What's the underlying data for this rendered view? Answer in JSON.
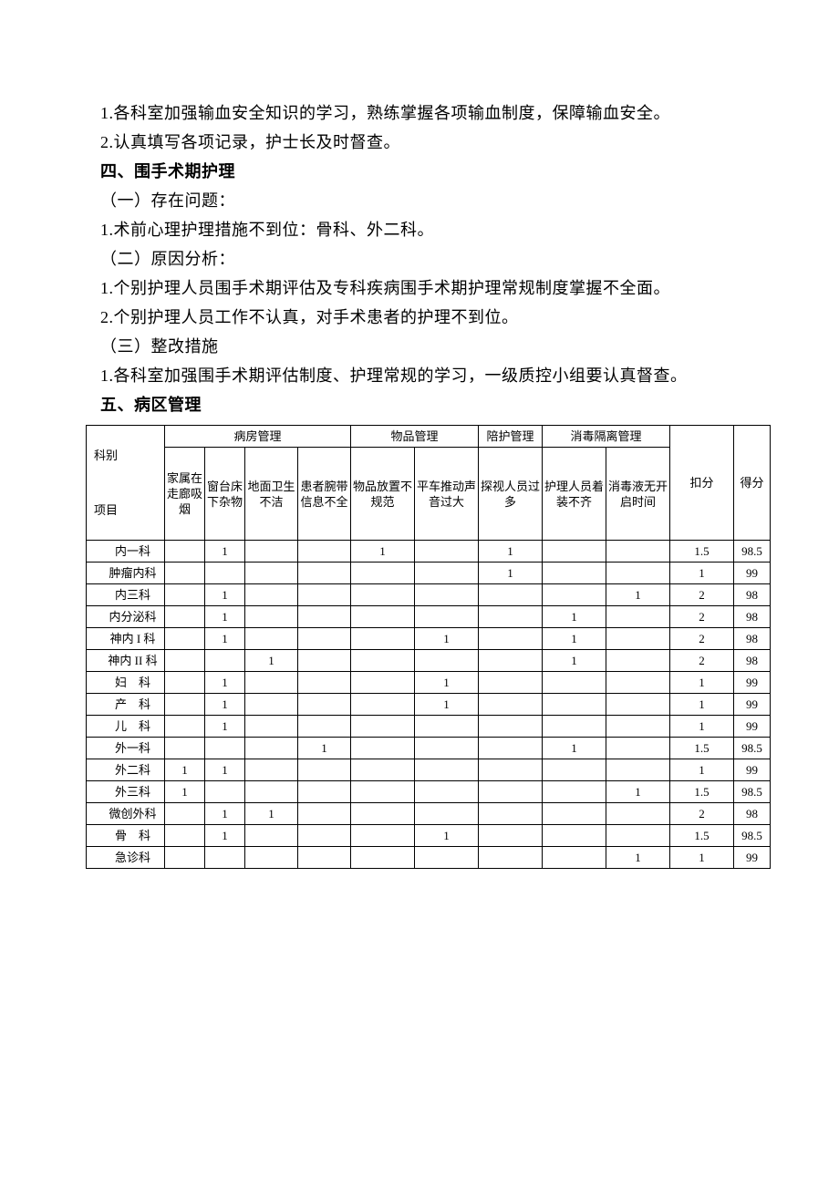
{
  "paragraphs": {
    "p1": "1.各科室加强输血安全知识的学习，熟练掌握各项输血制度，保障输血安全。",
    "p2": "2.认真填写各项记录，护士长及时督查。",
    "h4": "四、围手术期护理",
    "p3": "（一）存在问题：",
    "p4": "1.术前心理护理措施不到位：骨科、外二科。",
    "p5": "（二）原因分析：",
    "p6": "1.个别护理人员围手术期评估及专科疾病围手术期护理常规制度掌握不全面。",
    "p7": "2.个别护理人员工作不认真，对手术患者的护理不到位。",
    "p8": "（三）整改措施",
    "p9": "1.各科室加强围手术期评估制度、护理常规的学习，一级质控小组要认真督查。",
    "h5": "五、病区管理"
  },
  "table": {
    "corner_top": "科别",
    "corner_bottom": "项目",
    "group1": "病房管理",
    "group2": "物品管理",
    "group3": "陪护管理",
    "group4": "消毒隔离管理",
    "sub_headers": [
      "家属在走廊吸烟",
      "窗台床下杂物",
      "地面卫生不洁",
      "患者腕带信息不全",
      "物品放置不规范",
      "平车推动声音过大",
      "探视人员过多",
      "护理人员着装不齐",
      "消毒液无开启时间"
    ],
    "deduct_label": "扣分",
    "score_label": "得分",
    "rows": [
      {
        "dept": "内一科",
        "cells": [
          "",
          "1",
          "",
          "",
          "1",
          "",
          "1",
          "",
          ""
        ],
        "deduct": "1.5",
        "score": "98.5"
      },
      {
        "dept": "肿瘤内科",
        "cells": [
          "",
          "",
          "",
          "",
          "",
          "",
          "1",
          "",
          ""
        ],
        "deduct": "1",
        "score": "99"
      },
      {
        "dept": "内三科",
        "cells": [
          "",
          "1",
          "",
          "",
          "",
          "",
          "",
          "",
          "1"
        ],
        "deduct": "2",
        "score": "98"
      },
      {
        "dept": "内分泌科",
        "cells": [
          "",
          "1",
          "",
          "",
          "",
          "",
          "",
          "1",
          ""
        ],
        "deduct": "2",
        "score": "98"
      },
      {
        "dept": "神内 I 科",
        "cells": [
          "",
          "1",
          "",
          "",
          "",
          "1",
          "",
          "1",
          ""
        ],
        "deduct": "2",
        "score": "98"
      },
      {
        "dept": "神内 II 科",
        "cells": [
          "",
          "",
          "1",
          "",
          "",
          "",
          "",
          "1",
          ""
        ],
        "deduct": "2",
        "score": "98"
      },
      {
        "dept": "妇　科",
        "cells": [
          "",
          "1",
          "",
          "",
          "",
          "1",
          "",
          "",
          ""
        ],
        "deduct": "1",
        "score": "99"
      },
      {
        "dept": "产　科",
        "cells": [
          "",
          "1",
          "",
          "",
          "",
          "1",
          "",
          "",
          ""
        ],
        "deduct": "1",
        "score": "99"
      },
      {
        "dept": "儿　科",
        "cells": [
          "",
          "1",
          "",
          "",
          "",
          "",
          "",
          "",
          ""
        ],
        "deduct": "1",
        "score": "99"
      },
      {
        "dept": "外一科",
        "cells": [
          "",
          "",
          "",
          "1",
          "",
          "",
          "",
          "1",
          ""
        ],
        "deduct": "1.5",
        "score": "98.5"
      },
      {
        "dept": "外二科",
        "cells": [
          "1",
          "1",
          "",
          "",
          "",
          "",
          "",
          "",
          ""
        ],
        "deduct": "1",
        "score": "99"
      },
      {
        "dept": "外三科",
        "cells": [
          "1",
          "",
          "",
          "",
          "",
          "",
          "",
          "",
          "1"
        ],
        "deduct": "1.5",
        "score": "98.5"
      },
      {
        "dept": "微创外科",
        "cells": [
          "",
          "1",
          "1",
          "",
          "",
          "",
          "",
          "",
          ""
        ],
        "deduct": "2",
        "score": "98"
      },
      {
        "dept": "骨　科",
        "cells": [
          "",
          "1",
          "",
          "",
          "",
          "1",
          "",
          "",
          ""
        ],
        "deduct": "1.5",
        "score": "98.5"
      },
      {
        "dept": "急诊科",
        "cells": [
          "",
          "",
          "",
          "",
          "",
          "",
          "",
          "",
          "1"
        ],
        "deduct": "1",
        "score": "99"
      }
    ]
  },
  "style": {
    "body_fontsize": 18,
    "body_lineheight": 32,
    "table_fontsize": 13,
    "table_border_color": "#000000",
    "background_color": "#ffffff",
    "text_color": "#000000"
  }
}
